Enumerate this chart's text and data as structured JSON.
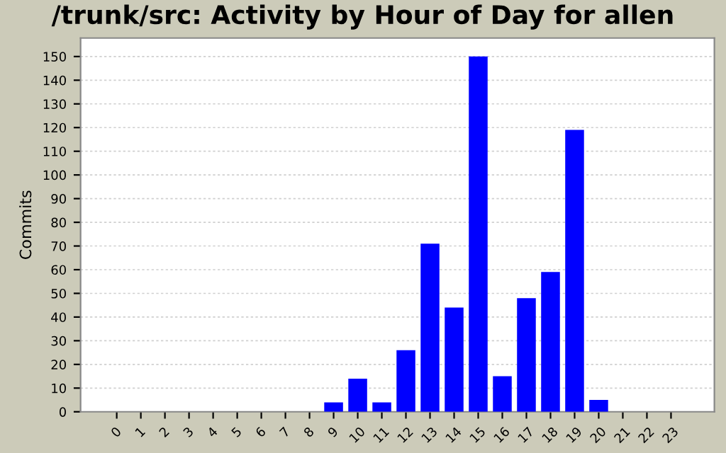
{
  "chart_data": {
    "type": "bar",
    "title": "/trunk/src: Activity by Hour of Day for allen",
    "ylabel": "Commits",
    "categories": [
      "0",
      "1",
      "2",
      "3",
      "4",
      "5",
      "6",
      "7",
      "8",
      "9",
      "10",
      "11",
      "12",
      "13",
      "14",
      "15",
      "16",
      "17",
      "18",
      "19",
      "20",
      "21",
      "22",
      "23"
    ],
    "values": [
      0,
      0,
      0,
      0,
      0,
      0,
      0,
      0,
      0,
      4,
      14,
      4,
      26,
      71,
      44,
      150,
      15,
      48,
      59,
      119,
      5,
      0,
      0,
      0
    ],
    "color": "#0000ff",
    "ylim": [
      0,
      157.8
    ],
    "yticks": [
      0,
      10,
      20,
      30,
      40,
      50,
      60,
      70,
      80,
      90,
      100,
      110,
      120,
      130,
      140,
      150
    ],
    "grid": "y"
  }
}
